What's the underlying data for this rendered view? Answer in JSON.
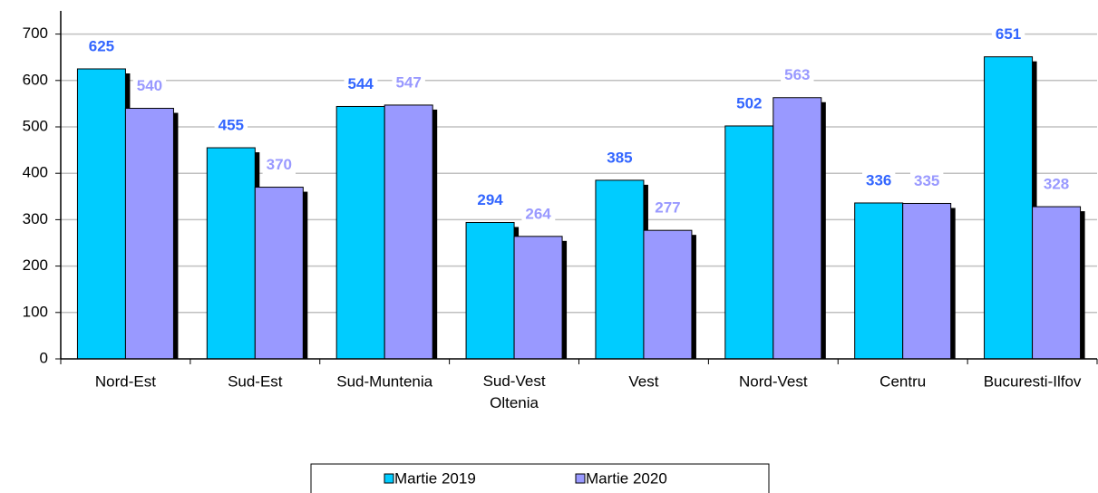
{
  "chart_data": {
    "type": "bar",
    "categories": [
      "Nord-Est",
      "Sud-Est",
      "Sud-Muntenia",
      "Sud-Vest Oltenia",
      "Vest",
      "Nord-Vest",
      "Centru",
      "Bucuresti-Ilfov"
    ],
    "series": [
      {
        "name": "Martie 2019",
        "color": "#00ccff",
        "label_color": "#3366ff",
        "values": [
          625,
          455,
          544,
          294,
          385,
          502,
          336,
          651
        ]
      },
      {
        "name": "Martie 2020",
        "color": "#9999ff",
        "label_color": "#9999ff",
        "values": [
          540,
          370,
          547,
          264,
          277,
          563,
          335,
          328
        ]
      }
    ],
    "ylim": [
      0,
      750
    ],
    "yticks": [
      0,
      100,
      200,
      300,
      400,
      500,
      600,
      700
    ],
    "grid": true,
    "legend": "bottom"
  }
}
